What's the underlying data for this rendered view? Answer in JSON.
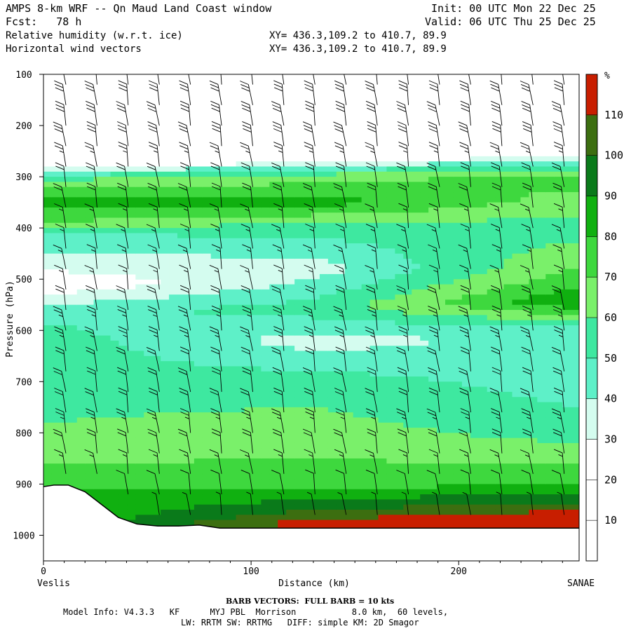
{
  "header": {
    "title": "AMPS 8-km WRF -- Qn Maud Land Coast window",
    "fcst": "Fcst:   78 h",
    "init": "Init: 00 UTC Mon 22 Dec 25",
    "valid": "Valid: 06 UTC Thu 25 Dec 25",
    "field1": "Relative humidity (w.r.t. ice)",
    "field2": "Horizontal wind vectors",
    "xy1": "XY= 436.3,109.2 to 410.7, 89.9",
    "xy2": "XY= 436.3,109.2 to 410.7, 89.9"
  },
  "footer": {
    "barb_note": "BARB VECTORS:  FULL BARB = 10 kts",
    "model_info": "Model Info: V4.3.3   KF      MYJ PBL  Morrison           8.0 km,  60 levels,",
    "physics": "LW: RRTM SW: RRTMG   DIFF: simple KM: 2D Smagor"
  },
  "chart_data": {
    "type": "cross-section",
    "title": "Relative humidity (w.r.t. ice) and horizontal wind vectors",
    "xlabel": "Distance (km)",
    "ylabel": "Pressure (hPa)",
    "x_range": [
      0,
      258
    ],
    "y_range": [
      1050,
      100
    ],
    "x_ticks": [
      0,
      100,
      200
    ],
    "y_ticks": [
      100,
      200,
      300,
      400,
      500,
      600,
      700,
      800,
      900,
      1000
    ],
    "x_start_label": "Veslis",
    "x_end_label": "SANAE",
    "colorbar": {
      "unit": "%",
      "levels": [
        10,
        20,
        30,
        40,
        50,
        60,
        70,
        80,
        90,
        100,
        110
      ],
      "colors": [
        "#ffffff",
        "#ffffff",
        "#ffffff",
        "#d4fcef",
        "#5ef0c8",
        "#3ee8a0",
        "#7af06a",
        "#3ed83e",
        "#10b010",
        "#0a7a1a",
        "#3c6e10",
        "#c81e00"
      ]
    },
    "profiles": [
      {
        "name": "rh_layers_km0",
        "x": 0,
        "rh": [
          {
            "p": 265,
            "v": 0
          },
          {
            "p": 300,
            "v": 55
          },
          {
            "p": 345,
            "v": 85
          },
          {
            "p": 380,
            "v": 75
          },
          {
            "p": 420,
            "v": 45
          },
          {
            "p": 470,
            "v": 35
          },
          {
            "p": 510,
            "v": 20
          },
          {
            "p": 560,
            "v": 45
          },
          {
            "p": 620,
            "v": 55
          },
          {
            "p": 700,
            "v": 55
          },
          {
            "p": 780,
            "v": 60
          },
          {
            "p": 860,
            "v": 70
          },
          {
            "p": 905,
            "v": 80
          }
        ]
      },
      {
        "name": "rh_layers_km130",
        "x": 130,
        "rh": [
          {
            "p": 245,
            "v": 0
          },
          {
            "p": 300,
            "v": 65
          },
          {
            "p": 350,
            "v": 85
          },
          {
            "p": 400,
            "v": 55
          },
          {
            "p": 480,
            "v": 35
          },
          {
            "p": 560,
            "v": 55
          },
          {
            "p": 620,
            "v": 35
          },
          {
            "p": 700,
            "v": 55
          },
          {
            "p": 800,
            "v": 65
          },
          {
            "p": 900,
            "v": 75
          },
          {
            "p": 960,
            "v": 105
          },
          {
            "p": 975,
            "v": 115
          }
        ]
      },
      {
        "name": "rh_layers_km258",
        "x": 258,
        "rh": [
          {
            "p": 235,
            "v": 0
          },
          {
            "p": 300,
            "v": 75
          },
          {
            "p": 400,
            "v": 55
          },
          {
            "p": 500,
            "v": 75
          },
          {
            "p": 545,
            "v": 90
          },
          {
            "p": 600,
            "v": 45
          },
          {
            "p": 700,
            "v": 45
          },
          {
            "p": 800,
            "v": 55
          },
          {
            "p": 900,
            "v": 80
          },
          {
            "p": 945,
            "v": 105
          },
          {
            "p": 960,
            "v": 115
          }
        ]
      }
    ],
    "terrain": [
      {
        "x": 0,
        "p": 905
      },
      {
        "x": 5,
        "p": 902
      },
      {
        "x": 12,
        "p": 902
      },
      {
        "x": 20,
        "p": 915
      },
      {
        "x": 28,
        "p": 940
      },
      {
        "x": 36,
        "p": 965
      },
      {
        "x": 45,
        "p": 978
      },
      {
        "x": 55,
        "p": 982
      },
      {
        "x": 65,
        "p": 982
      },
      {
        "x": 75,
        "p": 980
      },
      {
        "x": 85,
        "p": 986
      },
      {
        "x": 95,
        "p": 986
      },
      {
        "x": 258,
        "p": 986
      }
    ],
    "wind_barbs": {
      "x_spacing_km": 15,
      "columns": [
        0,
        15,
        30,
        45,
        60,
        75,
        90,
        105,
        120,
        135,
        150,
        165,
        180,
        195,
        210,
        225,
        240,
        255
      ],
      "pressure_levels": [
        120,
        160,
        200,
        240,
        280,
        320,
        360,
        400,
        440,
        480,
        520,
        560,
        600,
        640,
        680,
        720,
        760,
        800,
        840,
        880,
        920,
        960
      ],
      "speed_kts_by_level": [
        25,
        30,
        30,
        30,
        25,
        20,
        20,
        15,
        15,
        15,
        15,
        20,
        25,
        25,
        20,
        20,
        20,
        25,
        20,
        15,
        10,
        5
      ]
    }
  }
}
